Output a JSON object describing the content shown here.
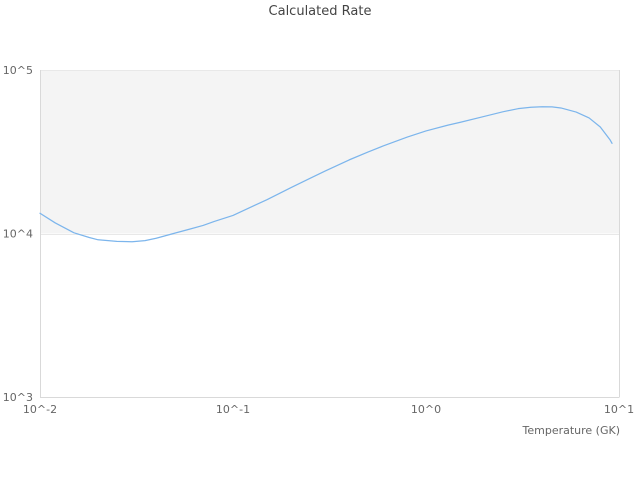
{
  "chart_data": {
    "type": "line",
    "title": "Calculated Rate",
    "xlabel": "Temperature (GK)",
    "ylabel": "",
    "x_scale": "log",
    "y_scale": "log",
    "xlim": [
      0.01,
      10
    ],
    "ylim": [
      1000,
      100000
    ],
    "grid": "horizontal-only",
    "legend": "none",
    "x_ticks": [
      {
        "value": 0.01,
        "label": "10^-2"
      },
      {
        "value": 0.1,
        "label": "10^-1"
      },
      {
        "value": 1,
        "label": "10^0"
      },
      {
        "value": 10,
        "label": "10^1"
      }
    ],
    "y_ticks": [
      {
        "value": 1000,
        "label": "10^3"
      },
      {
        "value": 10000,
        "label": "10^4"
      },
      {
        "value": 100000,
        "label": "10^5"
      }
    ],
    "shaded_band": {
      "from": 10000,
      "to": 100000,
      "color": "#f4f4f4"
    },
    "series": [
      {
        "name": "Calculated Rate",
        "color": "#7cb5ec",
        "points": [
          [
            0.01,
            13300
          ],
          [
            0.012,
            11600
          ],
          [
            0.015,
            10100
          ],
          [
            0.018,
            9450
          ],
          [
            0.02,
            9150
          ],
          [
            0.025,
            8950
          ],
          [
            0.03,
            8900
          ],
          [
            0.035,
            9050
          ],
          [
            0.04,
            9350
          ],
          [
            0.05,
            10050
          ],
          [
            0.06,
            10650
          ],
          [
            0.07,
            11200
          ],
          [
            0.08,
            11850
          ],
          [
            0.1,
            12900
          ],
          [
            0.13,
            14900
          ],
          [
            0.15,
            16100
          ],
          [
            0.2,
            19100
          ],
          [
            0.25,
            21700
          ],
          [
            0.3,
            24100
          ],
          [
            0.4,
            28200
          ],
          [
            0.5,
            31500
          ],
          [
            0.6,
            34300
          ],
          [
            0.8,
            38900
          ],
          [
            1.0,
            42400
          ],
          [
            1.3,
            46000
          ],
          [
            1.5,
            47800
          ],
          [
            2.0,
            52000
          ],
          [
            2.5,
            55500
          ],
          [
            3.0,
            58000
          ],
          [
            3.5,
            59200
          ],
          [
            4.0,
            59600
          ],
          [
            4.5,
            59500
          ],
          [
            5.0,
            58600
          ],
          [
            6.0,
            55300
          ],
          [
            7.0,
            50900
          ],
          [
            8.0,
            44800
          ],
          [
            9.0,
            37300
          ],
          [
            9.2,
            35600
          ]
        ]
      }
    ]
  },
  "colors": {
    "background": "#ffffff",
    "axis_line": "#d9d9d9",
    "grid_line": "#e8e8e8",
    "tick_label": "#666666",
    "title_text": "#444444",
    "band_fill": "#f4f4f4",
    "series_line": "#7cb5ec"
  }
}
